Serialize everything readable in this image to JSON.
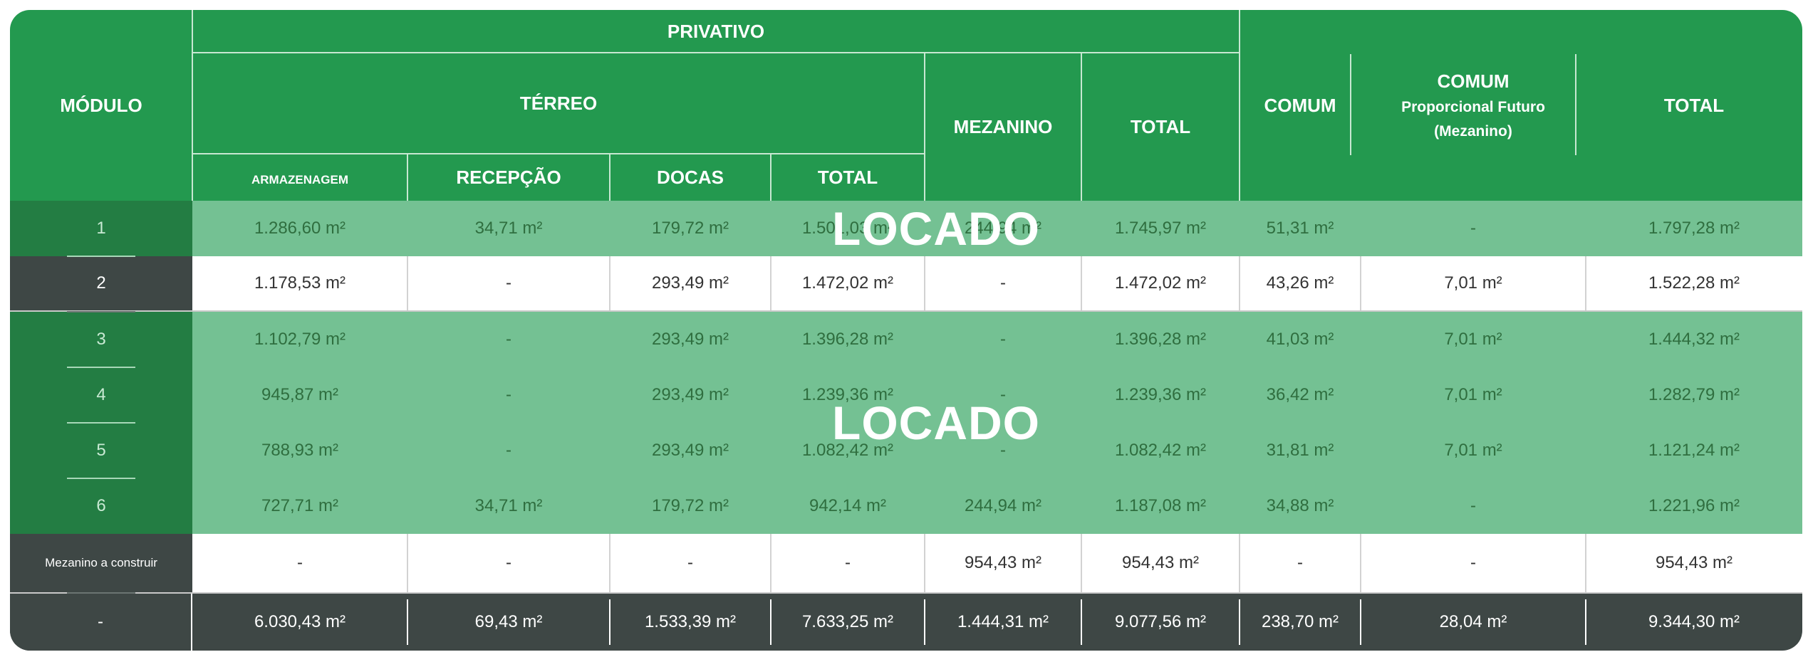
{
  "header": {
    "modulo": "MÓDULO",
    "privativo": "PRIVATIVO",
    "terreo": "TÉRREO",
    "armazenagem": "ARMAZENAGEM",
    "recepcao": "RECEPÇÃO",
    "docas": "DOCAS",
    "total_terreo": "TOTAL",
    "mezanino": "MEZANINO",
    "total_privativo": "TOTAL",
    "comum": "COMUM",
    "comum_futuro_title": "COMUM",
    "comum_futuro_sub1": "Proporcional Futuro",
    "comum_futuro_sub2": "(Mezanino)",
    "total": "TOTAL"
  },
  "overlay": {
    "top": "LOCADO",
    "bottom": "LOCADO"
  },
  "rows": [
    {
      "modulo": "1",
      "armazenagem": "1.286,60 m²",
      "recepcao": "34,71 m²",
      "docas": "179,72 m²",
      "total_terreo": "1.501,03 m²",
      "mezanino": "244,94 m²",
      "total_privativo": "1.745,97 m²",
      "comum": "51,31 m²",
      "comum_futuro": "-",
      "total": "1.797,28 m²",
      "status": "locado"
    },
    {
      "modulo": "2",
      "armazenagem": "1.178,53 m²",
      "recepcao": "-",
      "docas": "293,49 m²",
      "total_terreo": "1.472,02 m²",
      "mezanino": "-",
      "total_privativo": "1.472,02 m²",
      "comum": "43,26 m²",
      "comum_futuro": "7,01 m²",
      "total": "1.522,28 m²",
      "status": "disponivel"
    },
    {
      "modulo": "3",
      "armazenagem": "1.102,79 m²",
      "recepcao": "-",
      "docas": "293,49 m²",
      "total_terreo": "1.396,28 m²",
      "mezanino": "-",
      "total_privativo": "1.396,28 m²",
      "comum": "41,03 m²",
      "comum_futuro": "7,01 m²",
      "total": "1.444,32 m²",
      "status": "locado"
    },
    {
      "modulo": "4",
      "armazenagem": "945,87 m²",
      "recepcao": "-",
      "docas": "293,49 m²",
      "total_terreo": "1.239,36 m²",
      "mezanino": "-",
      "total_privativo": "1.239,36 m²",
      "comum": "36,42 m²",
      "comum_futuro": "7,01 m²",
      "total": "1.282,79 m²",
      "status": "locado"
    },
    {
      "modulo": "5",
      "armazenagem": "788,93 m²",
      "recepcao": "-",
      "docas": "293,49 m²",
      "total_terreo": "1.082,42 m²",
      "mezanino": "-",
      "total_privativo": "1.082,42 m²",
      "comum": "31,81 m²",
      "comum_futuro": "7,01 m²",
      "total": "1.121,24 m²",
      "status": "locado"
    },
    {
      "modulo": "6",
      "armazenagem": "727,71 m²",
      "recepcao": "34,71 m²",
      "docas": "179,72 m²",
      "total_terreo": "942,14 m²",
      "mezanino": "244,94 m²",
      "total_privativo": "1.187,08 m²",
      "comum": "34,88 m²",
      "comum_futuro": "-",
      "total": "1.221,96 m²",
      "status": "locado"
    },
    {
      "modulo": "Mezanino a construir",
      "armazenagem": "-",
      "recepcao": "-",
      "docas": "-",
      "total_terreo": "-",
      "mezanino": "954,43 m²",
      "total_privativo": "954,43 m²",
      "comum": "-",
      "comum_futuro": "-",
      "total": "954,43 m²",
      "status": "disponivel"
    }
  ],
  "totals": {
    "modulo": "-",
    "armazenagem": "6.030,43 m²",
    "recepcao": "69,43 m²",
    "docas": "1.533,39 m²",
    "total_terreo": "7.633,25 m²",
    "mezanino": "1.444,31 m²",
    "total_privativo": "9.077,56 m²",
    "comum": "238,70 m²",
    "comum_futuro": "28,04 m²",
    "total": "9.344,30 m²"
  },
  "colors": {
    "header_green": "#23994f",
    "locado_green": "#74c193",
    "module_green": "#237d43",
    "dark": "#3e4745"
  }
}
